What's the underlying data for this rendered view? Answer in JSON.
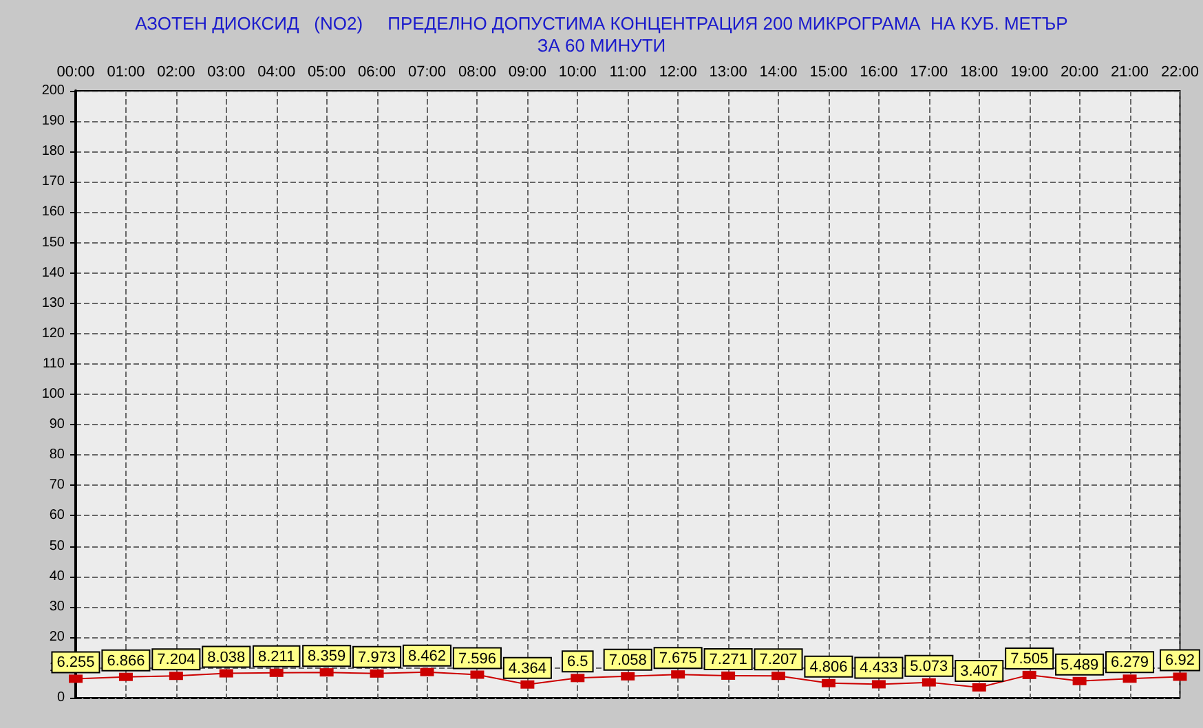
{
  "chart_data": {
    "type": "line",
    "title": "АЗОТЕН ДИОКСИД   (NO2)     ПРЕДЕЛНО ДОПУСТИМА КОНЦЕНТРАЦИЯ 200 МИКРОГРАМА  НА КУБ. МЕТЪР\nЗА 60 МИНУТИ",
    "categories": [
      "00:00",
      "01:00",
      "02:00",
      "03:00",
      "04:00",
      "05:00",
      "06:00",
      "07:00",
      "08:00",
      "09:00",
      "10:00",
      "11:00",
      "12:00",
      "13:00",
      "14:00",
      "15:00",
      "16:00",
      "17:00",
      "18:00",
      "19:00",
      "20:00",
      "21:00",
      "22:00"
    ],
    "series": [
      {
        "color": "#cc0000",
        "values": [
          6.255,
          6.866,
          7.204,
          8.038,
          8.211,
          8.359,
          7.973,
          8.462,
          7.596,
          4.364,
          6.5,
          7.058,
          7.675,
          7.271,
          7.207,
          4.806,
          4.433,
          5.073,
          3.407,
          7.505,
          5.489,
          6.279,
          6.92
        ]
      }
    ],
    "ylim": [
      0,
      200
    ],
    "yticks": [
      0,
      10,
      20,
      30,
      40,
      50,
      60,
      70,
      80,
      90,
      100,
      110,
      120,
      130,
      140,
      150,
      160,
      170,
      180,
      190,
      200
    ],
    "grid": true,
    "marker": "square",
    "line_style": "solid",
    "data_labels": true
  }
}
